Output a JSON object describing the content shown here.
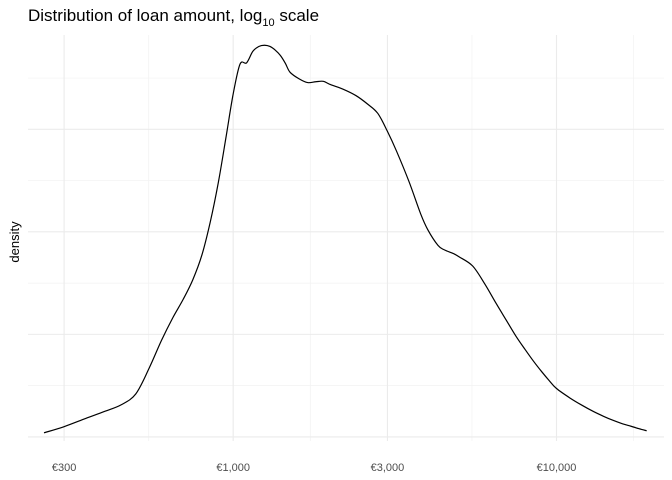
{
  "chart_data": {
    "type": "line",
    "title": {
      "main": "Distribution of loan amount, log",
      "sub": "10",
      "suffix": " scale"
    },
    "xlabel": "",
    "ylabel": "density",
    "x_scale": "log10",
    "xlim": [
      232,
      21500
    ],
    "ylim": [
      -0.01,
      0.98
    ],
    "x_major_ticks": [
      {
        "value": 300,
        "label": "€300"
      },
      {
        "value": 1000,
        "label": "€1,000"
      },
      {
        "value": 3000,
        "label": "€3,000"
      },
      {
        "value": 10000,
        "label": "€10,000"
      }
    ],
    "x_minor_ticks": [
      548,
      1732,
      5477,
      17320
    ],
    "y_major_ticks": [
      0,
      0.25,
      0.5,
      0.75
    ],
    "y_minor_ticks": [
      0.125,
      0.375,
      0.625,
      0.875
    ],
    "grid": true,
    "legend": "none",
    "line_color": "#000000",
    "series": [
      {
        "x": [
          260,
          300,
          350,
          400,
          450,
          500,
          550,
          600,
          650,
          700,
          750,
          800,
          850,
          900,
          950,
          1000,
          1050,
          1100,
          1150,
          1200,
          1250,
          1300,
          1350,
          1400,
          1450,
          1500,
          1600,
          1700,
          1800,
          1900,
          2000,
          2200,
          2400,
          2600,
          2800,
          3000,
          3200,
          3500,
          3800,
          4000,
          4300,
          4500,
          4800,
          5000,
          5500,
          6000,
          6500,
          7000,
          7500,
          8000,
          8500,
          9000,
          9500,
          10000,
          11000,
          12000,
          13000,
          14000,
          15000,
          16000,
          17000,
          18000,
          19000
        ],
        "y": [
          0.01,
          0.025,
          0.045,
          0.062,
          0.078,
          0.105,
          0.168,
          0.235,
          0.29,
          0.335,
          0.383,
          0.443,
          0.525,
          0.621,
          0.73,
          0.836,
          0.909,
          0.912,
          0.94,
          0.952,
          0.955,
          0.952,
          0.943,
          0.93,
          0.911,
          0.889,
          0.873,
          0.864,
          0.866,
          0.867,
          0.859,
          0.847,
          0.832,
          0.812,
          0.789,
          0.745,
          0.697,
          0.622,
          0.544,
          0.505,
          0.467,
          0.456,
          0.447,
          0.439,
          0.417,
          0.373,
          0.326,
          0.284,
          0.245,
          0.213,
          0.184,
          0.159,
          0.137,
          0.118,
          0.095,
          0.077,
          0.062,
          0.05,
          0.04,
          0.032,
          0.026,
          0.02,
          0.015
        ]
      }
    ]
  }
}
